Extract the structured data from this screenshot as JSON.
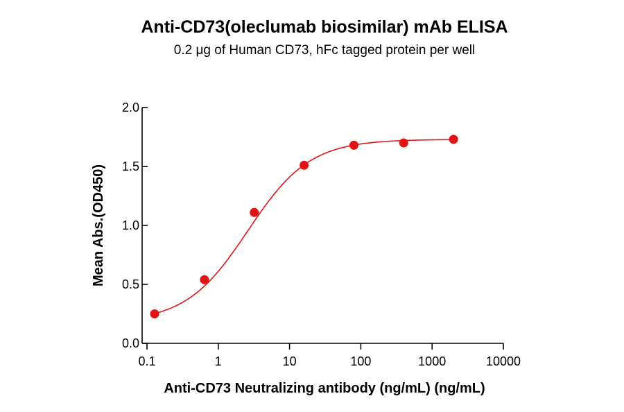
{
  "chart_data": {
    "type": "scatter",
    "title": "Anti-CD73(oleclumab biosimilar) mAb ELISA",
    "subtitle": "0.2 μg of Human CD73, hFc tagged protein per well",
    "xlabel": "Anti-CD73 Neutralizing antibody (ng/mL) (ng/mL)",
    "ylabel": "Mean Abs.(OD450)",
    "x_scale": "log",
    "xlim": [
      0.1,
      10000
    ],
    "ylim": [
      0,
      2.0
    ],
    "x_ticks": [
      0.1,
      1,
      10,
      100,
      1000,
      10000
    ],
    "x_tick_labels": [
      "0.1",
      "1",
      "10",
      "100",
      "1000",
      "10000"
    ],
    "y_ticks": [
      0,
      0.5,
      1.0,
      1.5,
      2.0
    ],
    "y_tick_labels": [
      "0.0",
      "0.5",
      "1.0",
      "1.5",
      "2.0"
    ],
    "grid": false,
    "color": "#e01414",
    "series": [
      {
        "x": [
          0.128,
          0.64,
          3.2,
          16,
          80,
          400,
          2000
        ],
        "y": [
          0.25,
          0.54,
          1.11,
          1.51,
          1.68,
          1.7,
          1.73
        ]
      }
    ],
    "fit": {
      "model": "4PL",
      "bottom": 0.18,
      "top": 1.73,
      "ec50": 2.6,
      "hill": 1.0
    }
  }
}
